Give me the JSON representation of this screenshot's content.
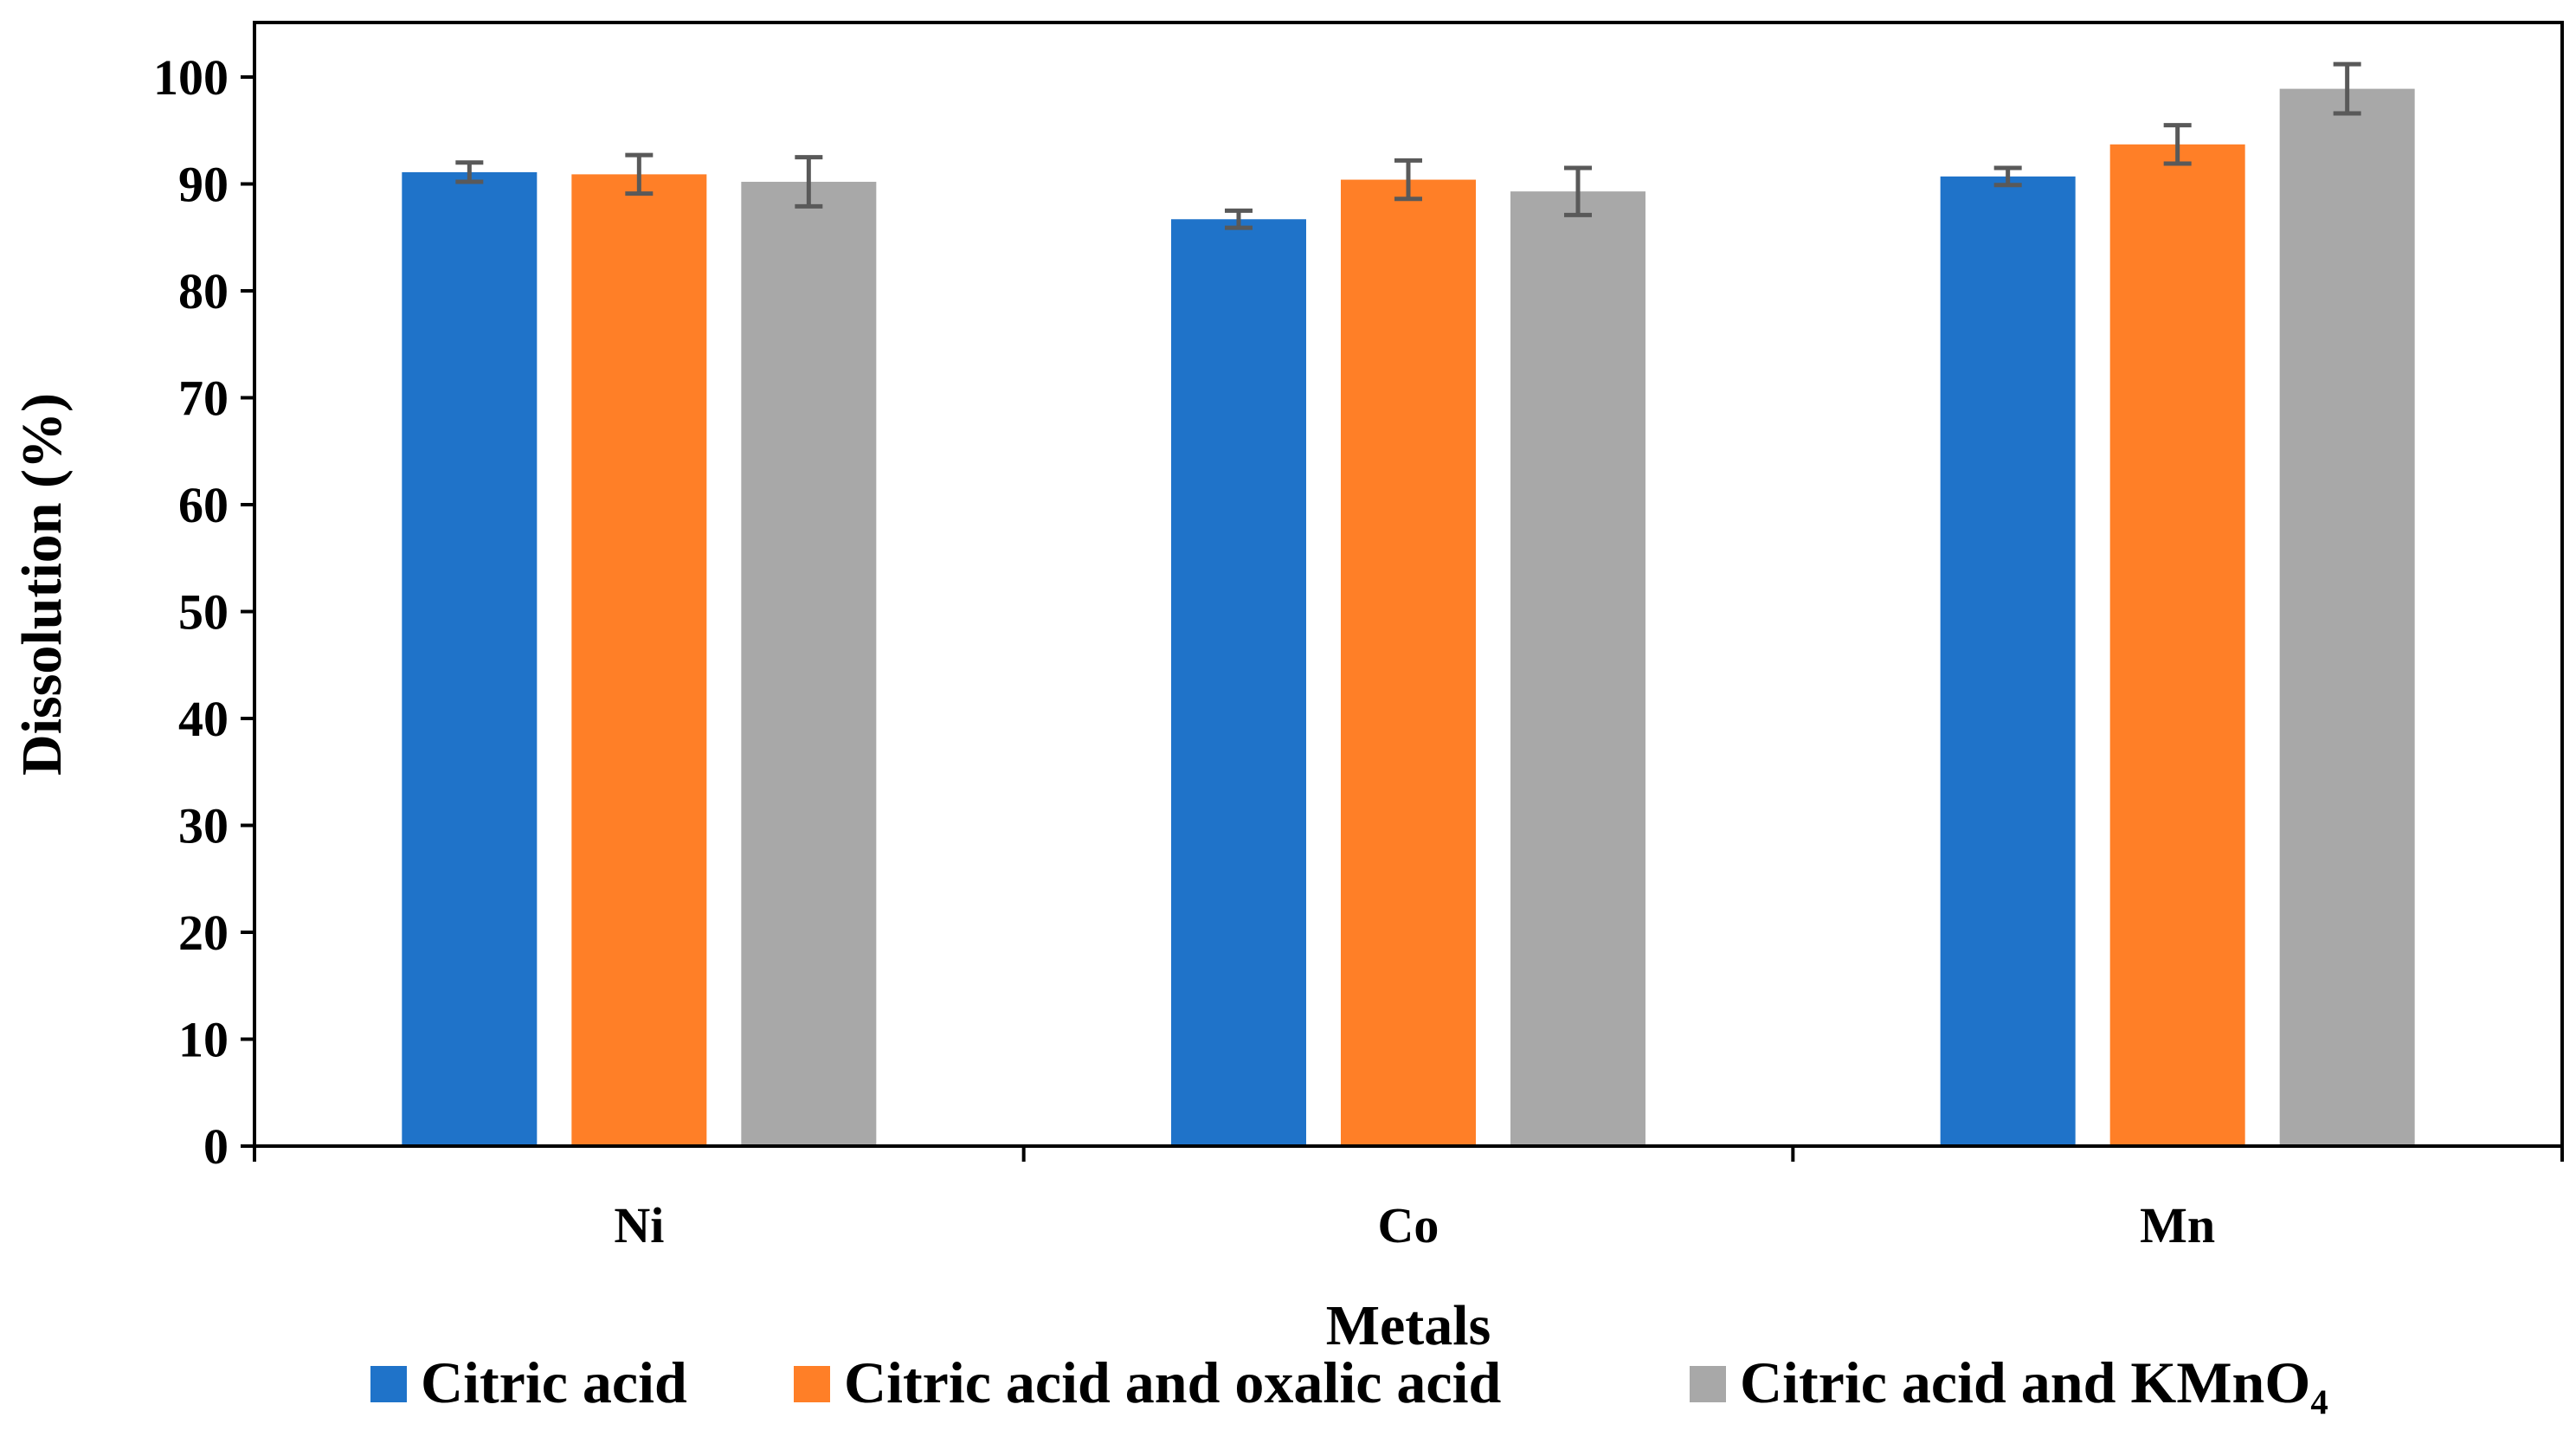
{
  "chart_data": {
    "type": "bar",
    "title": "",
    "xlabel": "Metals",
    "ylabel": "Dissolution (%)",
    "ylim": [
      0,
      100
    ],
    "yticks": [
      0,
      10,
      20,
      30,
      40,
      50,
      60,
      70,
      80,
      90,
      100
    ],
    "categories": [
      "Ni",
      "Co",
      "Mn"
    ],
    "series": [
      {
        "name": "Citric acid",
        "color": "#1f73c9",
        "values": [
          91.1,
          86.7,
          90.7
        ],
        "errors": [
          0.9,
          0.8,
          0.8
        ]
      },
      {
        "name": "Citric acid and oxalic acid",
        "color": "#ff7f27",
        "values": [
          90.9,
          90.4,
          93.7
        ],
        "errors": [
          1.8,
          1.8,
          1.8
        ]
      },
      {
        "name": "Citric acid and KMnO₄",
        "color": "#a8a8a8",
        "values": [
          90.2,
          89.3,
          98.9
        ],
        "errors": [
          2.3,
          2.2,
          2.3
        ]
      }
    ],
    "errorbar_color": "#595959",
    "legend_position": "bottom",
    "grid": false
  }
}
